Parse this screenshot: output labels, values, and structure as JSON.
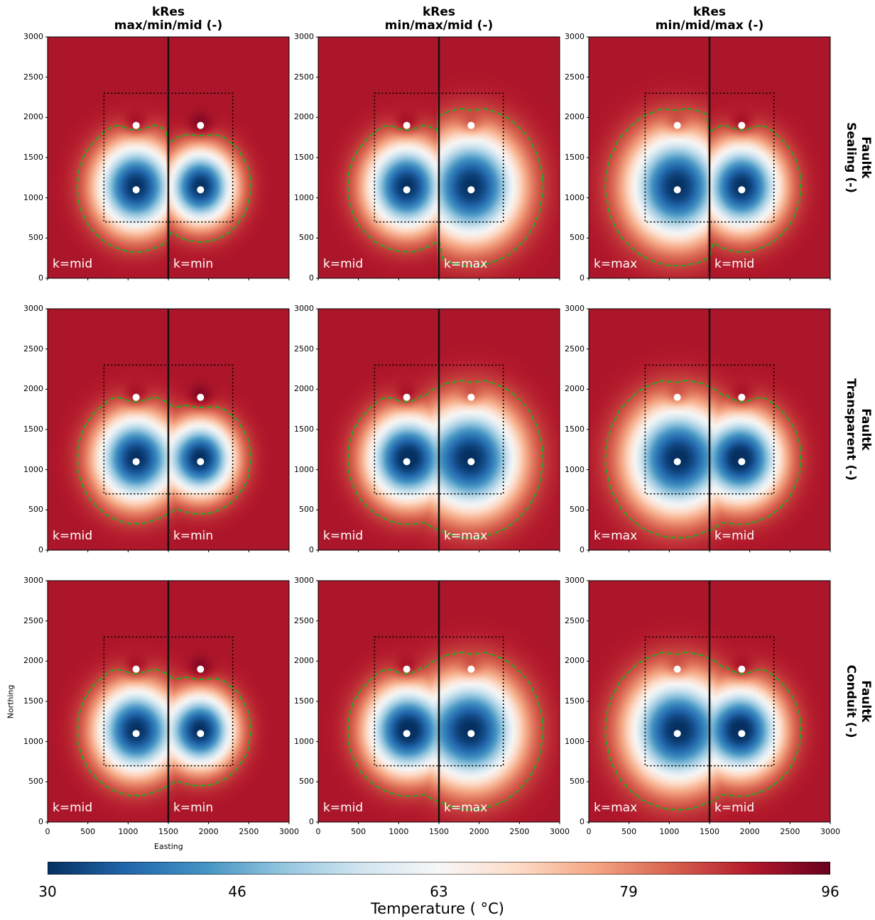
{
  "columns": [
    {
      "title_line1": "kRes",
      "title_line2": "max/min/mid (-)",
      "left_label": "k=mid",
      "right_label": "k=min",
      "left_perm": "mid",
      "right_perm": "min"
    },
    {
      "title_line1": "kRes",
      "title_line2": "min/max/mid (-)",
      "left_label": "k=mid",
      "right_label": "k=max",
      "left_perm": "mid",
      "right_perm": "max"
    },
    {
      "title_line1": "kRes",
      "title_line2": "min/mid/max (-)",
      "left_label": "k=max",
      "right_label": "k=mid",
      "left_perm": "max",
      "right_perm": "mid"
    }
  ],
  "rows": [
    {
      "title_line1": "Faultk",
      "title_line2": "Sealing (-)",
      "fault_mode": "sealing"
    },
    {
      "title_line1": "Faultk",
      "title_line2": "Transparent (-)",
      "fault_mode": "transparent"
    },
    {
      "title_line1": "Faultk",
      "title_line2": "Conduit (-)",
      "fault_mode": "conduit"
    }
  ],
  "axes": {
    "xlabel": "Easting",
    "ylabel": "Northing",
    "xlim": [
      0,
      3000
    ],
    "ylim": [
      0,
      3000
    ],
    "xticks": [
      "0",
      "500",
      "1000",
      "1500",
      "2000",
      "2500",
      "3000"
    ],
    "yticks": [
      "0",
      "500",
      "1000",
      "1500",
      "2000",
      "2500",
      "3000"
    ]
  },
  "colorbar": {
    "label": "Temperature ( °C)",
    "ticks": [
      "30",
      "46",
      "63",
      "79",
      "96"
    ],
    "range": [
      30,
      96
    ],
    "colormap": [
      "#053061",
      "#2166ac",
      "#4393c3",
      "#92c5de",
      "#d1e5f0",
      "#f7f7f7",
      "#fddbc7",
      "#f4a582",
      "#d6604d",
      "#b2182b",
      "#67001f"
    ]
  },
  "chart_data": {
    "type": "heatmap",
    "xlabel": "Easting",
    "ylabel": "Northing",
    "xlim": [
      0,
      3000
    ],
    "ylim": [
      0,
      3000
    ],
    "fault_x": 1500,
    "wells": [
      {
        "x": 1100,
        "y": 1900
      },
      {
        "x": 1900,
        "y": 1900
      },
      {
        "x": 1100,
        "y": 1100
      },
      {
        "x": 1900,
        "y": 1100
      }
    ],
    "dotted_box": {
      "x0": 700,
      "x1": 2300,
      "y0": 700,
      "y1": 2300
    },
    "background_temperature": 90,
    "min_temperature": 30,
    "colors": {
      "contour": "#22aa22",
      "fault": "#111111",
      "wells": "#ffffff"
    }
  }
}
